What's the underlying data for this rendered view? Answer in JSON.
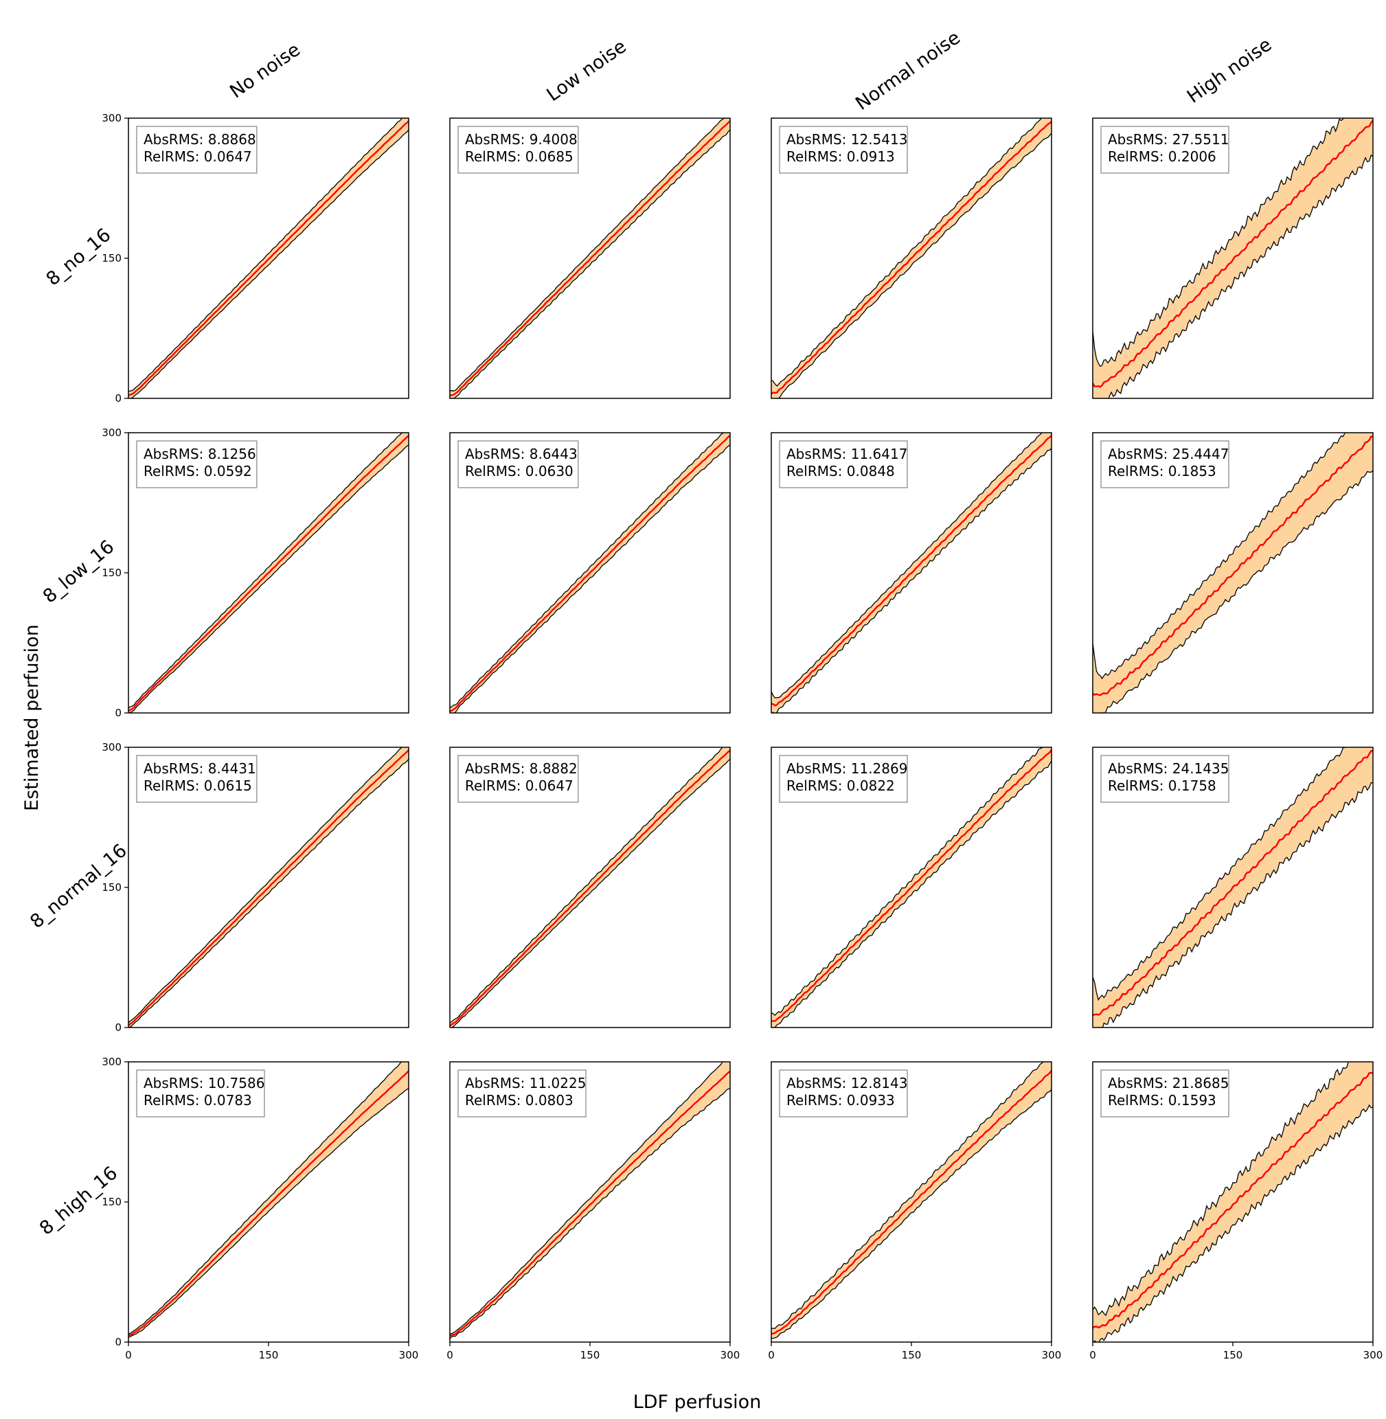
{
  "figure": {
    "xlabel": "LDF perfusion",
    "ylabel": "Estimated perfusion"
  },
  "chart_data": {
    "type": "line",
    "layout": "4x4 small multiples",
    "column_titles": [
      "No noise",
      "Low noise",
      "Normal noise",
      "High noise"
    ],
    "row_titles": [
      "8_no_16",
      "8_low_16",
      "8_normal_16",
      "8_high_16"
    ],
    "xlim": [
      0,
      300
    ],
    "ylim": [
      0,
      300
    ],
    "xticks": [
      "0",
      "150",
      "300"
    ],
    "yticks": [
      "0",
      "150",
      "300"
    ],
    "colors": {
      "line": "#ff0000",
      "band": "#fdd49e",
      "band_edge": "#000000"
    },
    "stats": [
      [
        {
          "abs": "AbsRMS: 8.8868",
          "rel": "RelRMS: 0.0647"
        },
        {
          "abs": "AbsRMS: 9.4008",
          "rel": "RelRMS: 0.0685"
        },
        {
          "abs": "AbsRMS: 12.5413",
          "rel": "RelRMS: 0.0913"
        },
        {
          "abs": "AbsRMS: 27.5511",
          "rel": "RelRMS: 0.2006"
        }
      ],
      [
        {
          "abs": "AbsRMS: 8.1256",
          "rel": "RelRMS: 0.0592"
        },
        {
          "abs": "AbsRMS: 8.6443",
          "rel": "RelRMS: 0.0630"
        },
        {
          "abs": "AbsRMS: 11.6417",
          "rel": "RelRMS: 0.0848"
        },
        {
          "abs": "AbsRMS: 25.4447",
          "rel": "RelRMS: 0.1853"
        }
      ],
      [
        {
          "abs": "AbsRMS: 8.4431",
          "rel": "RelRMS: 0.0615"
        },
        {
          "abs": "AbsRMS: 8.8882",
          "rel": "RelRMS: 0.0647"
        },
        {
          "abs": "AbsRMS: 11.2869",
          "rel": "RelRMS: 0.0822"
        },
        {
          "abs": "AbsRMS: 24.1435",
          "rel": "RelRMS: 0.1758"
        }
      ],
      [
        {
          "abs": "AbsRMS: 10.7586",
          "rel": "RelRMS: 0.0783"
        },
        {
          "abs": "AbsRMS: 11.0225",
          "rel": "RelRMS: 0.0803"
        },
        {
          "abs": "AbsRMS: 12.8143",
          "rel": "RelRMS: 0.0933"
        },
        {
          "abs": "AbsRMS: 21.8685",
          "rel": "RelRMS: 0.1593"
        }
      ]
    ],
    "curves": [
      [
        {
          "x": [
            0,
            5,
            15,
            30,
            50,
            100,
            150,
            200,
            250,
            300
          ],
          "mean": [
            3,
            5,
            14,
            29,
            49,
            99,
            149,
            199,
            249,
            297
          ],
          "half_width": [
            4,
            4,
            4,
            4,
            4,
            5,
            6,
            7,
            8,
            10
          ]
        },
        {
          "x": [
            0,
            5,
            15,
            30,
            50,
            100,
            150,
            200,
            250,
            300
          ],
          "mean": [
            3,
            4,
            14,
            29,
            49,
            99,
            149,
            199,
            249,
            297
          ],
          "half_width": [
            5,
            4,
            4,
            4,
            4,
            5,
            6,
            7,
            8,
            10
          ]
        },
        {
          "x": [
            0,
            5,
            15,
            30,
            50,
            100,
            150,
            200,
            250,
            300
          ],
          "mean": [
            5,
            6,
            15,
            30,
            50,
            100,
            150,
            200,
            250,
            297
          ],
          "half_width": [
            15,
            8,
            6,
            6,
            6,
            7,
            8,
            9,
            11,
            13
          ]
        },
        {
          "x": [
            0,
            5,
            15,
            30,
            50,
            100,
            150,
            200,
            250,
            300
          ],
          "mean": [
            15,
            12,
            18,
            30,
            48,
            98,
            148,
            198,
            248,
            297
          ],
          "half_width": [
            55,
            25,
            20,
            20,
            20,
            22,
            24,
            28,
            33,
            37
          ]
        }
      ],
      [
        {
          "x": [
            0,
            5,
            15,
            30,
            50,
            100,
            150,
            200,
            250,
            300
          ],
          "mean": [
            2,
            5,
            16,
            31,
            50,
            100,
            150,
            200,
            250,
            297
          ],
          "half_width": [
            3,
            3,
            3,
            3,
            4,
            5,
            6,
            7,
            8,
            10
          ]
        },
        {
          "x": [
            0,
            5,
            15,
            30,
            50,
            100,
            150,
            200,
            250,
            300
          ],
          "mean": [
            2,
            4,
            15,
            30,
            50,
            100,
            150,
            200,
            250,
            297
          ],
          "half_width": [
            4,
            4,
            3,
            4,
            4,
            5,
            6,
            7,
            8,
            10
          ]
        },
        {
          "x": [
            0,
            5,
            15,
            30,
            50,
            100,
            150,
            200,
            250,
            300
          ],
          "mean": [
            10,
            8,
            16,
            30,
            50,
            100,
            150,
            200,
            250,
            297
          ],
          "half_width": [
            12,
            7,
            6,
            6,
            6,
            7,
            8,
            9,
            11,
            13
          ]
        },
        {
          "x": [
            0,
            5,
            15,
            30,
            50,
            100,
            150,
            200,
            250,
            300
          ],
          "mean": [
            22,
            18,
            22,
            33,
            50,
            99,
            149,
            199,
            248,
            296
          ],
          "half_width": [
            50,
            22,
            18,
            18,
            18,
            21,
            23,
            27,
            31,
            35
          ]
        }
      ],
      [
        {
          "x": [
            0,
            5,
            15,
            30,
            50,
            100,
            150,
            200,
            250,
            300
          ],
          "mean": [
            2,
            6,
            16,
            31,
            50,
            100,
            150,
            200,
            250,
            297
          ],
          "half_width": [
            3,
            3,
            3,
            4,
            4,
            5,
            6,
            7,
            8,
            10
          ]
        },
        {
          "x": [
            0,
            5,
            15,
            30,
            50,
            100,
            150,
            200,
            250,
            300
          ],
          "mean": [
            2,
            5,
            15,
            30,
            50,
            100,
            150,
            200,
            250,
            297
          ],
          "half_width": [
            3,
            3,
            3,
            4,
            4,
            5,
            6,
            7,
            8,
            10
          ]
        },
        {
          "x": [
            0,
            5,
            15,
            30,
            50,
            100,
            150,
            200,
            250,
            300
          ],
          "mean": [
            6,
            8,
            16,
            31,
            50,
            100,
            150,
            200,
            250,
            297
          ],
          "half_width": [
            8,
            6,
            6,
            6,
            6,
            7,
            8,
            9,
            11,
            13
          ]
        },
        {
          "x": [
            0,
            5,
            15,
            30,
            50,
            100,
            150,
            200,
            250,
            300
          ],
          "mean": [
            14,
            14,
            20,
            32,
            50,
            99,
            149,
            199,
            249,
            297
          ],
          "half_width": [
            40,
            18,
            16,
            16,
            16,
            20,
            23,
            26,
            30,
            34
          ]
        }
      ],
      [
        {
          "x": [
            0,
            5,
            15,
            30,
            50,
            100,
            150,
            200,
            250,
            300
          ],
          "mean": [
            7,
            9,
            16,
            29,
            47,
            97,
            147,
            196,
            244,
            290
          ],
          "half_width": [
            2,
            2,
            3,
            3,
            4,
            6,
            7,
            9,
            12,
            18
          ]
        },
        {
          "x": [
            0,
            5,
            15,
            30,
            50,
            100,
            150,
            200,
            250,
            300
          ],
          "mean": [
            7,
            8,
            16,
            29,
            47,
            97,
            147,
            196,
            244,
            290
          ],
          "half_width": [
            2,
            2,
            3,
            3,
            4,
            6,
            7,
            9,
            12,
            18
          ]
        },
        {
          "x": [
            0,
            5,
            15,
            30,
            50,
            100,
            150,
            200,
            250,
            300
          ],
          "mean": [
            9,
            10,
            17,
            30,
            48,
            97,
            147,
            196,
            244,
            290
          ],
          "half_width": [
            5,
            5,
            5,
            6,
            7,
            8,
            9,
            11,
            14,
            20
          ]
        },
        {
          "x": [
            0,
            5,
            15,
            30,
            50,
            100,
            150,
            200,
            250,
            300
          ],
          "mean": [
            16,
            15,
            20,
            31,
            48,
            97,
            147,
            196,
            244,
            290
          ],
          "half_width": [
            22,
            14,
            14,
            15,
            16,
            19,
            23,
            27,
            31,
            35
          ]
        }
      ]
    ]
  }
}
